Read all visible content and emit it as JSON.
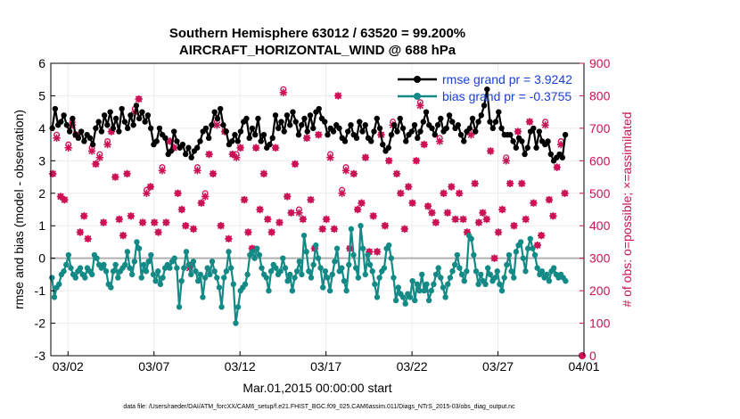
{
  "chart_data": {
    "type": "line",
    "title": [
      "Southern Hemisphere 63012 / 63520 = 99.200%",
      "AIRCRAFT_HORIZONTAL_WIND @ 688 hPa"
    ],
    "xlabel": "Mar.01,2015 00:00:00 start",
    "ylabel_left": "rmse and bias (model - observation)",
    "ylabel_right": "# of obs: o=possible; ×=assimilated",
    "footer": "data file: /Users/raeder/DAI/ATM_forcXX/CAM6_setup/f.e21.FHIST_BGC.f09_025.CAM6assim.011/Diags_NTrS_2015-03/obs_diag_output.nc",
    "xlim": [
      1,
      31
    ],
    "ylim_left": [
      -3,
      6
    ],
    "ylim_right": [
      0,
      900
    ],
    "x_ticks": [
      2,
      7,
      12,
      17,
      22,
      27,
      32
    ],
    "x_tick_labels": [
      "03/02",
      "03/07",
      "03/12",
      "03/17",
      "03/22",
      "03/27",
      "04/01"
    ],
    "y_ticks_left": [
      -3,
      -2,
      -1,
      0,
      1,
      2,
      3,
      4,
      5,
      6
    ],
    "y_ticks_right": [
      0,
      100,
      200,
      300,
      400,
      500,
      600,
      700,
      800,
      900
    ],
    "grid": true,
    "zero_line": 0,
    "legend_position": "top-right",
    "colors": {
      "rmse": "#000000",
      "bias": "#138a86",
      "obs": "#cc1155",
      "zero": "#b0b0b0",
      "grid": "#ececec"
    },
    "series": [
      {
        "name": "rmse grand pr = 3.9242",
        "axis": "left",
        "values": [
          4.0,
          4.6,
          4.1,
          4.2,
          4.4,
          4.1,
          3.9,
          4.3,
          3.8,
          3.7,
          3.9,
          3.6,
          3.8,
          3.7,
          3.5,
          4.0,
          4.2,
          3.9,
          4.4,
          4.1,
          4.5,
          4.0,
          4.3,
          3.9,
          4.6,
          4.2,
          4.0,
          4.4,
          4.1,
          4.7,
          4.3,
          4.5,
          4.2,
          4.4,
          4.0,
          3.5,
          3.6,
          4.0,
          3.8,
          3.7,
          3.2,
          3.3,
          3.9,
          3.6,
          3.4,
          3.5,
          3.2,
          3.4,
          3.1,
          3.3,
          3.4,
          3.6,
          3.9,
          4.0,
          3.7,
          4.1,
          4.5,
          4.3,
          4.6,
          4.1,
          3.9,
          3.5,
          3.6,
          3.8,
          3.6,
          3.9,
          4.2,
          4.3,
          3.7,
          4.0,
          3.8,
          4.3,
          3.6,
          3.8,
          3.4,
          3.5,
          3.7,
          4.4,
          4.0,
          4.2,
          3.9,
          4.4,
          4.1,
          4.5,
          4.2,
          3.8,
          4.1,
          4.3,
          3.9,
          4.4,
          4.0,
          4.5,
          4.6,
          4.3,
          4.2,
          3.8,
          4.0,
          3.9,
          4.1,
          4.0,
          3.7,
          3.6,
          3.9,
          4.1,
          3.8,
          3.7,
          4.2,
          3.9,
          4.1,
          3.7,
          3.6,
          3.9,
          4.3,
          4.0,
          3.5,
          3.3,
          3.4,
          3.8,
          4.1,
          3.9,
          4.3,
          4.0,
          3.6,
          3.8,
          3.9,
          4.1,
          3.7,
          3.9,
          4.2,
          4.5,
          4.1,
          4.0,
          3.8,
          4.1,
          4.3,
          3.9,
          4.0,
          4.4,
          4.2,
          4.0,
          4.1,
          3.8,
          3.6,
          3.9,
          4.0,
          4.3,
          3.9,
          4.2,
          4.4,
          4.7,
          5.2,
          4.2,
          4.0,
          4.2,
          4.5,
          4.0,
          3.8,
          3.8,
          3.8,
          3.6,
          3.4,
          3.7,
          3.6,
          3.2,
          3.4,
          3.9,
          4.0,
          3.4,
          3.9,
          3.6,
          3.5,
          3.6,
          3.2,
          3.0,
          3.1,
          3.2,
          3.1,
          3.8
        ]
      },
      {
        "name": "bias grand pr = -0.3755",
        "axis": "left",
        "values": [
          -0.6,
          -1.2,
          -0.9,
          -0.8,
          -0.5,
          -0.4,
          -0.2,
          0.1,
          -0.3,
          -0.5,
          -0.6,
          -0.4,
          -0.3,
          -0.5,
          -0.6,
          -0.3,
          -0.4,
          -0.5,
          0.1,
          0.0,
          -0.2,
          -0.3,
          -0.2,
          -0.4,
          -0.8,
          -0.9,
          -0.4,
          -0.2,
          -0.6,
          -0.4,
          -0.3,
          -0.2,
          0.2,
          -0.3,
          -0.5,
          -0.1,
          0.5,
          0.3,
          -0.6,
          -0.2,
          -0.4,
          -0.1,
          0.1,
          -0.5,
          -0.7,
          -0.4,
          -0.8,
          -0.6,
          -0.3,
          -0.2,
          -0.3,
          -0.1,
          0.0,
          -0.3,
          -1.5,
          -0.7,
          -0.3,
          0.2,
          -0.2,
          -0.5,
          -0.1,
          -0.4,
          -0.7,
          -0.5,
          -1.2,
          -0.6,
          -0.3,
          -0.5,
          -0.1,
          -0.4,
          -0.6,
          -0.9,
          -1.5,
          -0.6,
          -0.4,
          0.2,
          -0.3,
          -0.8,
          -2.0,
          -1.5,
          -1.0,
          -0.9,
          -0.8,
          -0.5,
          0.1,
          0.2,
          0.0,
          0.3,
          0.1,
          -0.3,
          -0.5,
          -0.6,
          -1.0,
          -0.4,
          -0.2,
          -0.3,
          -0.5,
          -0.4,
          0.0,
          -0.3,
          -0.7,
          -0.5,
          -1.0,
          -0.6,
          -0.4,
          -0.1,
          -0.5,
          0.7,
          0.2,
          -0.4,
          -0.6,
          -0.2,
          0.4,
          0.0,
          -0.3,
          -0.9,
          -0.4,
          -0.6,
          -1.0,
          -0.5,
          -0.1,
          0.3,
          -0.4,
          -0.3,
          -0.7,
          -1.0,
          -0.2,
          0.9,
          0.1,
          -0.3,
          -0.6,
          1.0,
          0.3,
          -0.5,
          0.1,
          -0.2,
          -0.4,
          -0.8,
          -1.2,
          -0.6,
          -0.4,
          -0.3,
          0.3,
          0.4,
          0.0,
          -0.6,
          -1.3,
          -0.9,
          -1.1,
          -1.2,
          -1.4,
          -1.1,
          -1.2,
          -0.7,
          -1.3,
          -0.8,
          -1.0,
          -0.5,
          -1.0,
          -0.8,
          -1.3,
          -1.0,
          -0.8,
          -0.5,
          -0.3,
          -0.6,
          -0.9,
          -1.2,
          -0.8,
          -0.6,
          -0.4,
          -0.2,
          0.1,
          -0.3,
          -0.5,
          -0.7,
          -0.4,
          0.7,
          0.6,
          0.1,
          -0.4,
          -0.8,
          -0.5,
          -0.7,
          -0.8,
          -0.3,
          -0.5,
          -0.7,
          -0.6,
          -0.4,
          -0.8,
          -1.0,
          -0.6,
          -0.2,
          0.1,
          -0.4,
          -0.6,
          0.2,
          0.4,
          0.5,
          0.0,
          -0.4,
          0.3,
          0.6,
          0.3,
          0.1,
          -0.3,
          -0.5,
          -0.4,
          -0.6,
          -0.5,
          -0.7,
          -0.4,
          -0.3,
          -0.5,
          -0.6,
          -0.5,
          -0.6,
          -0.7
        ]
      },
      {
        "name": "obs possible",
        "axis": "right",
        "marker": "o",
        "values": [
          560,
          680,
          490,
          480,
          650,
          720,
          680,
          380,
          430,
          360,
          640,
          590,
          620,
          410,
          660,
          690,
          550,
          420,
          370,
          560,
          430,
          760,
          790,
          410,
          510,
          520,
          410,
          380,
          580,
          410,
          660,
          640,
          500,
          450,
          400,
          280,
          390,
          580,
          470,
          500,
          620,
          560,
          720,
          400,
          690,
          360,
          620,
          620,
          640,
          480,
          380,
          330,
          640,
          450,
          560,
          420,
          380,
          640,
          410,
          820,
          490,
          440,
          590,
          450,
          420,
          670,
          480,
          330,
          680,
          390,
          420,
          620,
          390,
          800,
          510,
          580,
          330,
          560,
          450,
          470,
          610,
          320,
          430,
          320,
          680,
          400,
          600,
          720,
          560,
          500,
          390,
          520,
          470,
          600,
          780,
          650,
          460,
          440,
          410,
          670,
          500,
          440,
          520,
          420,
          500,
          420,
          380,
          690,
          530,
          410,
          440,
          420,
          630,
          300,
          380,
          450,
          610,
          530,
          400,
          690,
          530,
          420,
          720,
          470,
          340,
          370,
          720,
          480,
          430,
          580,
          660,
          500
        ]
      },
      {
        "name": "obs assimilated",
        "axis": "right",
        "marker": "x",
        "values": [
          560,
          670,
          490,
          480,
          640,
          710,
          680,
          380,
          430,
          360,
          630,
          590,
          610,
          410,
          650,
          690,
          550,
          420,
          370,
          560,
          430,
          750,
          790,
          410,
          500,
          520,
          410,
          380,
          570,
          410,
          660,
          640,
          500,
          450,
          400,
          270,
          390,
          570,
          470,
          490,
          620,
          560,
          710,
          400,
          690,
          360,
          620,
          610,
          640,
          480,
          380,
          330,
          640,
          450,
          560,
          420,
          380,
          640,
          410,
          810,
          490,
          440,
          590,
          440,
          420,
          670,
          480,
          330,
          680,
          390,
          420,
          610,
          390,
          800,
          500,
          570,
          330,
          560,
          450,
          470,
          610,
          320,
          430,
          320,
          680,
          400,
          600,
          710,
          560,
          500,
          390,
          520,
          470,
          600,
          770,
          650,
          460,
          440,
          410,
          660,
          500,
          440,
          520,
          420,
          500,
          420,
          380,
          680,
          530,
          410,
          440,
          420,
          630,
          300,
          380,
          450,
          600,
          530,
          400,
          690,
          530,
          420,
          720,
          470,
          340,
          370,
          710,
          480,
          430,
          580,
          650,
          500
        ]
      }
    ],
    "last_point_obs": 0
  }
}
